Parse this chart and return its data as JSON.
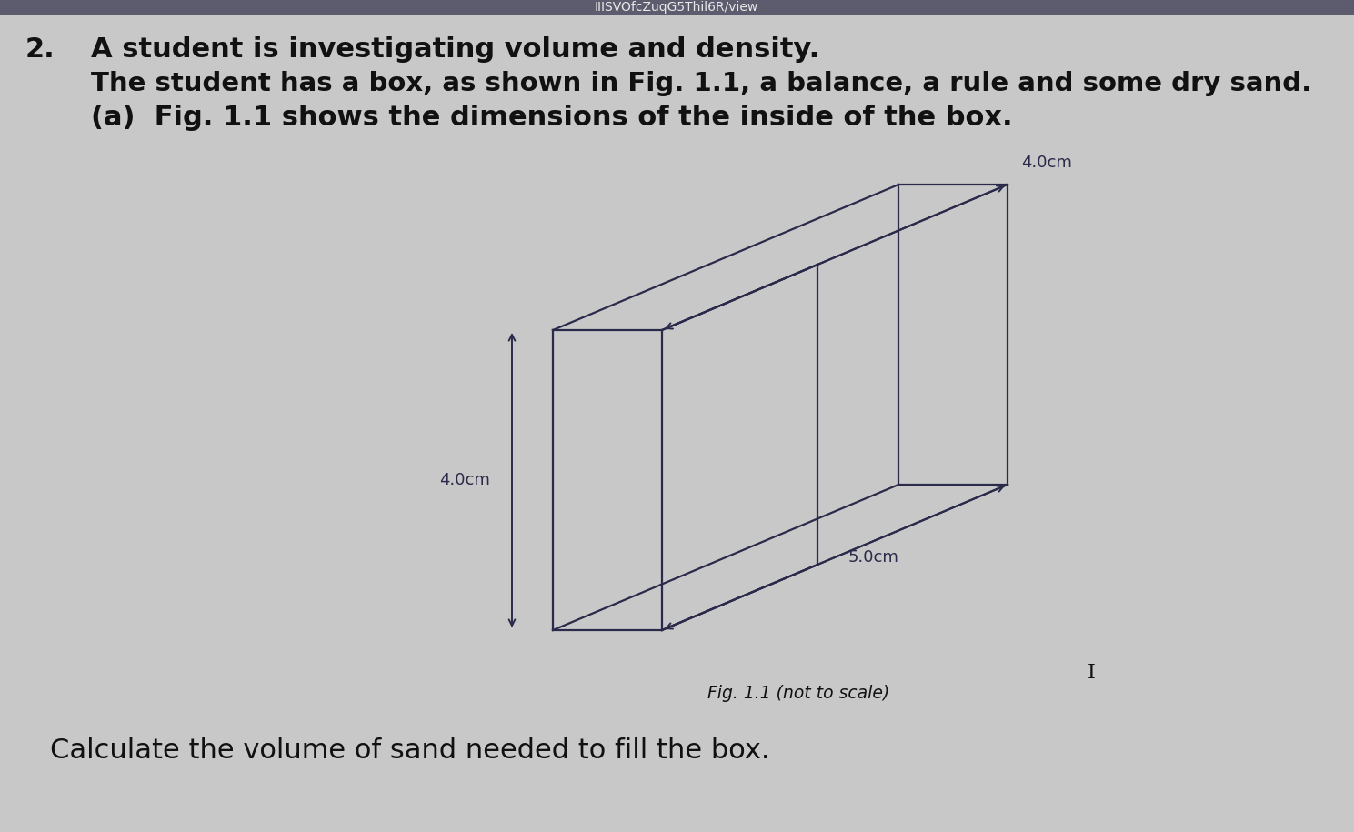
{
  "background_color": "#cbcbcb",
  "header_bar_color": "#5c5c6e",
  "header_text": "IIISVOfcZuqG5Thil6R/view",
  "header_text_color": "#e8e8e8",
  "question_number": "2.",
  "line1": "A student is investigating volume and density.",
  "line2": "The student has a box, as shown in Fig. 1.1, a balance, a rule and some dry sand.",
  "line3": "(a)  Fig. 1.1 shows the dimensions of the inside of the box.",
  "fig_caption": "Fig. 1.1 (not to scale)",
  "question_text": "Calculate the volume of sand needed to fill the box.",
  "dim_top": "4.0cm",
  "dim_height": "4.0cm",
  "dim_depth": "5.0cm",
  "text_color": "#111111",
  "box_color": "#2a2a4a",
  "body_bg": "#c8c8c8"
}
